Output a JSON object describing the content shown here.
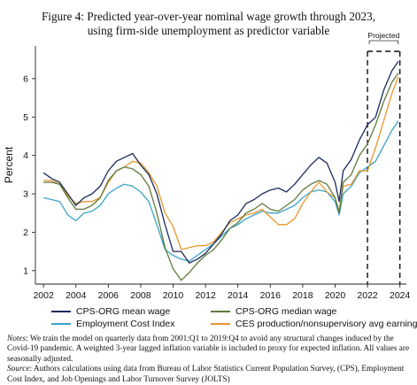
{
  "figure": {
    "title_line1": "Figure 4: Predicted year-over-year nominal wage growth through 2023,",
    "title_line2": "using firm-side unemployment as predictor variable",
    "notes_label": "Notes",
    "notes_text": ": We train the model on quarterly data from 2001:Q1 to 2019:Q4 to avoid any structural changes induced by the Covid-19 pandemic. A weighted 3-year lagged inflation variable is included to proxy for expected inflation. All values are seasonally adjusted.",
    "source_label": "Source",
    "source_text": ": Authors calculations using data from Bureau of Labor Statistics Current Population Survey, (CPS), Employment Cost Index, and Job Openings and Labor Turnover Survey (JOLTS)"
  },
  "chart_data": {
    "type": "line",
    "title": "Figure 4: Predicted year-over-year nominal wage growth through 2023, using firm-side unemployment as predictor variable",
    "xlabel": "",
    "ylabel": "Percent",
    "xlim": [
      2001.5,
      2024.4
    ],
    "ylim": [
      0.65,
      6.85
    ],
    "xticks": [
      2002,
      2004,
      2006,
      2008,
      2010,
      2012,
      2014,
      2016,
      2018,
      2020,
      2022,
      2024
    ],
    "yticks": [
      1,
      2,
      3,
      4,
      5,
      6
    ],
    "grid": false,
    "legend_position": "bottom",
    "projection": {
      "start": 2022,
      "end": 2024,
      "label": "Projected"
    },
    "series": [
      {
        "name": "CPS-ORG mean wage",
        "color": "#1b2a5c",
        "points": [
          [
            2002,
            3.55
          ],
          [
            2002.5,
            3.4
          ],
          [
            2003,
            3.3
          ],
          [
            2003.5,
            3.0
          ],
          [
            2004,
            2.7
          ],
          [
            2004.5,
            2.9
          ],
          [
            2005,
            3.0
          ],
          [
            2005.5,
            3.2
          ],
          [
            2006,
            3.6
          ],
          [
            2006.5,
            3.85
          ],
          [
            2007,
            3.95
          ],
          [
            2007.5,
            4.05
          ],
          [
            2008,
            3.75
          ],
          [
            2008.5,
            3.5
          ],
          [
            2009,
            3.0
          ],
          [
            2009.5,
            2.2
          ],
          [
            2010,
            1.5
          ],
          [
            2010.5,
            1.5
          ],
          [
            2011,
            1.2
          ],
          [
            2011.5,
            1.3
          ],
          [
            2012,
            1.45
          ],
          [
            2012.5,
            1.7
          ],
          [
            2013,
            1.95
          ],
          [
            2013.5,
            2.3
          ],
          [
            2014,
            2.45
          ],
          [
            2014.5,
            2.75
          ],
          [
            2015,
            2.85
          ],
          [
            2015.5,
            3.0
          ],
          [
            2016,
            3.1
          ],
          [
            2016.5,
            3.15
          ],
          [
            2017,
            3.05
          ],
          [
            2017.5,
            3.25
          ],
          [
            2018,
            3.5
          ],
          [
            2018.5,
            3.75
          ],
          [
            2019,
            3.95
          ],
          [
            2019.5,
            3.8
          ],
          [
            2020,
            3.3
          ],
          [
            2020.25,
            2.8
          ],
          [
            2020.5,
            3.6
          ],
          [
            2021,
            3.9
          ],
          [
            2021.5,
            4.4
          ],
          [
            2022,
            4.8
          ],
          [
            2022.5,
            5.0
          ],
          [
            2023,
            5.7
          ],
          [
            2023.5,
            6.2
          ],
          [
            2023.9,
            6.45
          ]
        ]
      },
      {
        "name": "CPS-ORG median wage",
        "color": "#5e7a3c",
        "points": [
          [
            2002,
            3.3
          ],
          [
            2002.5,
            3.3
          ],
          [
            2003,
            3.25
          ],
          [
            2003.5,
            2.9
          ],
          [
            2004,
            2.6
          ],
          [
            2004.5,
            2.6
          ],
          [
            2005,
            2.7
          ],
          [
            2005.5,
            2.9
          ],
          [
            2006,
            3.35
          ],
          [
            2006.5,
            3.6
          ],
          [
            2007,
            3.7
          ],
          [
            2007.5,
            3.65
          ],
          [
            2008,
            3.5
          ],
          [
            2008.5,
            3.2
          ],
          [
            2009,
            2.5
          ],
          [
            2009.5,
            1.6
          ],
          [
            2010,
            1.05
          ],
          [
            2010.5,
            0.75
          ],
          [
            2011,
            0.95
          ],
          [
            2011.5,
            1.2
          ],
          [
            2012,
            1.4
          ],
          [
            2012.5,
            1.55
          ],
          [
            2013,
            1.8
          ],
          [
            2013.5,
            2.1
          ],
          [
            2014,
            2.25
          ],
          [
            2014.5,
            2.5
          ],
          [
            2015,
            2.6
          ],
          [
            2015.5,
            2.75
          ],
          [
            2016,
            2.6
          ],
          [
            2016.5,
            2.55
          ],
          [
            2017,
            2.7
          ],
          [
            2017.5,
            2.85
          ],
          [
            2018,
            3.1
          ],
          [
            2018.5,
            3.25
          ],
          [
            2019,
            3.35
          ],
          [
            2019.5,
            3.25
          ],
          [
            2020,
            2.9
          ],
          [
            2020.25,
            2.5
          ],
          [
            2020.5,
            3.3
          ],
          [
            2021,
            3.5
          ],
          [
            2021.5,
            4.0
          ],
          [
            2022,
            4.3
          ],
          [
            2022.5,
            4.8
          ],
          [
            2023,
            5.4
          ],
          [
            2023.5,
            5.9
          ],
          [
            2023.9,
            6.15
          ]
        ]
      },
      {
        "name": "Employment Cost Index",
        "color": "#3ba3c9",
        "points": [
          [
            2002,
            2.9
          ],
          [
            2002.5,
            2.85
          ],
          [
            2003,
            2.8
          ],
          [
            2003.5,
            2.45
          ],
          [
            2004,
            2.3
          ],
          [
            2004.5,
            2.5
          ],
          [
            2005,
            2.55
          ],
          [
            2005.5,
            2.7
          ],
          [
            2006,
            3.0
          ],
          [
            2006.5,
            3.15
          ],
          [
            2007,
            3.25
          ],
          [
            2007.5,
            3.2
          ],
          [
            2008,
            3.05
          ],
          [
            2008.5,
            2.8
          ],
          [
            2009,
            2.2
          ],
          [
            2009.5,
            1.55
          ],
          [
            2010,
            1.4
          ],
          [
            2010.5,
            1.3
          ],
          [
            2011,
            1.25
          ],
          [
            2011.5,
            1.4
          ],
          [
            2012,
            1.55
          ],
          [
            2012.5,
            1.7
          ],
          [
            2013,
            1.9
          ],
          [
            2013.5,
            2.1
          ],
          [
            2014,
            2.2
          ],
          [
            2014.5,
            2.35
          ],
          [
            2015,
            2.45
          ],
          [
            2015.5,
            2.55
          ],
          [
            2016,
            2.5
          ],
          [
            2016.5,
            2.5
          ],
          [
            2017,
            2.6
          ],
          [
            2017.5,
            2.7
          ],
          [
            2018,
            2.9
          ],
          [
            2018.5,
            3.05
          ],
          [
            2019,
            3.1
          ],
          [
            2019.5,
            3.05
          ],
          [
            2020,
            2.8
          ],
          [
            2020.25,
            2.45
          ],
          [
            2020.5,
            3.0
          ],
          [
            2021,
            3.2
          ],
          [
            2021.5,
            3.55
          ],
          [
            2022,
            3.7
          ],
          [
            2022.5,
            3.85
          ],
          [
            2023,
            4.25
          ],
          [
            2023.5,
            4.65
          ],
          [
            2023.9,
            4.9
          ]
        ]
      },
      {
        "name": "CES production/nonsupervisory avg earnings",
        "color": "#e8962b",
        "points": [
          [
            2002,
            3.35
          ],
          [
            2002.5,
            3.35
          ],
          [
            2003,
            3.25
          ],
          [
            2003.5,
            2.95
          ],
          [
            2004,
            2.75
          ],
          [
            2004.5,
            2.8
          ],
          [
            2005,
            2.8
          ],
          [
            2005.5,
            2.9
          ],
          [
            2006,
            3.3
          ],
          [
            2006.5,
            3.6
          ],
          [
            2007,
            3.7
          ],
          [
            2007.5,
            3.85
          ],
          [
            2008,
            3.8
          ],
          [
            2008.5,
            3.55
          ],
          [
            2009,
            3.2
          ],
          [
            2009.5,
            2.5
          ],
          [
            2010,
            2.15
          ],
          [
            2010.5,
            1.55
          ],
          [
            2011,
            1.6
          ],
          [
            2011.5,
            1.65
          ],
          [
            2012,
            1.65
          ],
          [
            2012.5,
            1.75
          ],
          [
            2013,
            2.0
          ],
          [
            2013.5,
            2.25
          ],
          [
            2014,
            2.35
          ],
          [
            2014.5,
            2.45
          ],
          [
            2015,
            2.5
          ],
          [
            2015.5,
            2.6
          ],
          [
            2016,
            2.4
          ],
          [
            2016.5,
            2.2
          ],
          [
            2017,
            2.2
          ],
          [
            2017.5,
            2.35
          ],
          [
            2018,
            2.75
          ],
          [
            2018.5,
            3.05
          ],
          [
            2019,
            3.3
          ],
          [
            2019.5,
            3.05
          ],
          [
            2020,
            2.9
          ],
          [
            2020.25,
            2.55
          ],
          [
            2020.5,
            3.2
          ],
          [
            2021,
            3.25
          ],
          [
            2021.5,
            3.6
          ],
          [
            2022,
            3.6
          ],
          [
            2022.5,
            4.2
          ],
          [
            2023,
            4.9
          ],
          [
            2023.5,
            5.6
          ],
          [
            2023.9,
            6.05
          ]
        ]
      }
    ]
  }
}
